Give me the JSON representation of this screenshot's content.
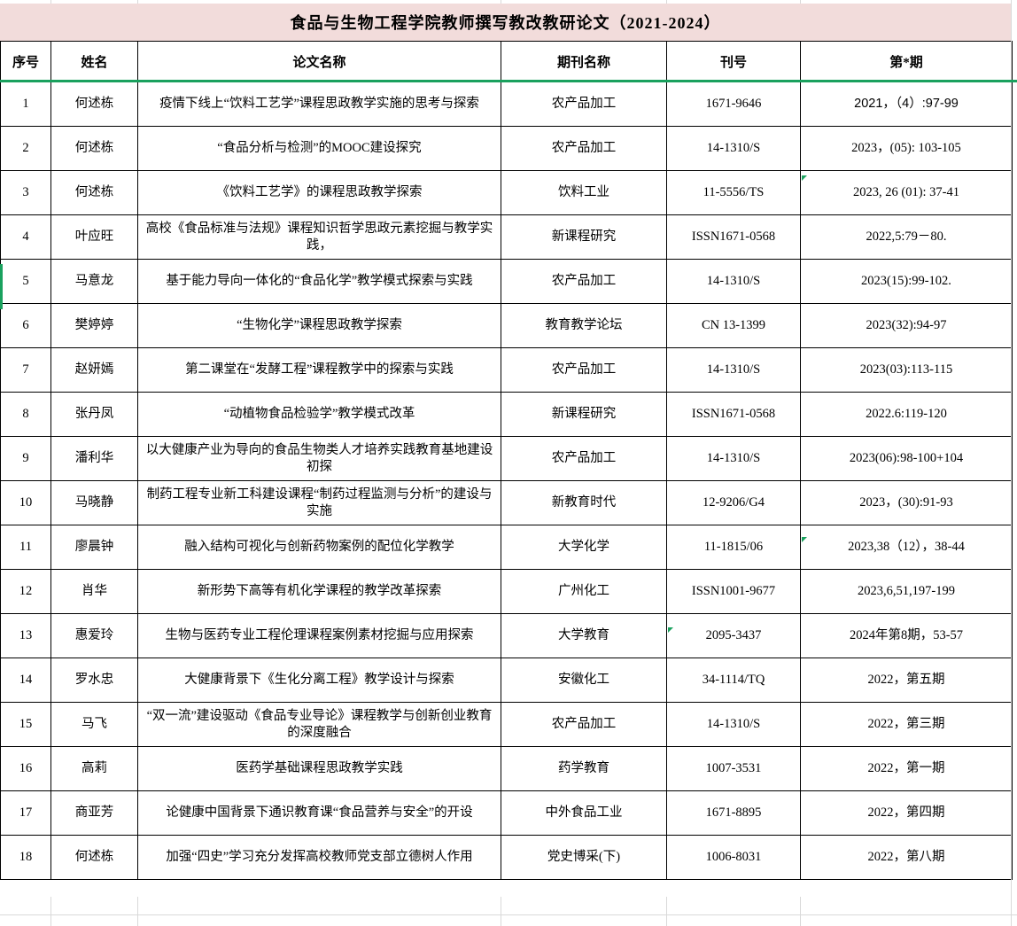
{
  "title": "食品与生物工程学院教师撰写教改教研论文（2021-2024）",
  "colors": {
    "title_bg": "#f2dcdb",
    "accent_green": "#1aa15e",
    "grid_light": "#d9d9d9",
    "border_black": "#000000"
  },
  "table": {
    "headers": [
      "序号",
      "姓名",
      "论文名称",
      "期刊名称",
      "刊号",
      "第*期"
    ],
    "rows": [
      {
        "no": "1",
        "name": "何述栋",
        "paper": "疫情下线上“饮料工艺学”课程思政教学实施的思考与探索",
        "journal": "农产品加工",
        "issn": "1671-9646",
        "issue": "2021，（4）:97-99"
      },
      {
        "no": "2",
        "name": "何述栋",
        "paper": "“食品分析与检测”的MOOC建设探究",
        "journal": "农产品加工",
        "issn": "14-1310/S",
        "issue": "2023，(05): 103-105"
      },
      {
        "no": "3",
        "name": "何述栋",
        "paper": "《饮料工艺学》的课程思政教学探索",
        "journal": "饮料工业",
        "issn": "11-5556/TS",
        "issue": "2023, 26 (01): 37-41"
      },
      {
        "no": "4",
        "name": "叶应旺",
        "paper": "高校《食品标准与法规》课程知识哲学思政元素挖掘与教学实践，",
        "journal": "新课程研究",
        "issn": "ISSN1671-0568",
        "issue": "2022,5:79－80."
      },
      {
        "no": "5",
        "name": "马意龙",
        "paper": "基于能力导向一体化的“食品化学”教学模式探索与实践",
        "journal": "农产品加工",
        "issn": "14-1310/S",
        "issue": "2023(15):99-102."
      },
      {
        "no": "6",
        "name": "樊婷婷",
        "paper": "“生物化学”课程思政教学探索",
        "journal": "教育教学论坛",
        "issn": "CN 13-1399",
        "issue": "2023(32):94-97"
      },
      {
        "no": "7",
        "name": "赵妍嫣",
        "paper": "第二课堂在“发酵工程”课程教学中的探索与实践",
        "journal": "农产品加工",
        "issn": "14-1310/S",
        "issue": "2023(03):113-115"
      },
      {
        "no": "8",
        "name": "张丹凤",
        "paper": "“动植物食品检验学”教学模式改革",
        "journal": "新课程研究",
        "issn": "ISSN1671-0568",
        "issue": "2022.6:119-120"
      },
      {
        "no": "9",
        "name": "潘利华",
        "paper": "以大健康产业为导向的食品生物类人才培养实践教育基地建设初探",
        "journal": "农产品加工",
        "issn": "14-1310/S",
        "issue": "2023(06):98-100+104"
      },
      {
        "no": "10",
        "name": "马晓静",
        "paper": "制药工程专业新工科建设课程“制药过程监测与分析”的建设与实施",
        "journal": "新教育时代",
        "issn": "12-9206/G4",
        "issue": "2023，(30):91-93"
      },
      {
        "no": "11",
        "name": "廖晨钟",
        "paper": "融入结构可视化与创新药物案例的配位化学教学",
        "journal": "大学化学",
        "issn": "11-1815/06",
        "issue": "2023,38（12），38-44"
      },
      {
        "no": "12",
        "name": "肖华",
        "paper": "新形势下高等有机化学课程的教学改革探索",
        "journal": "广州化工",
        "issn": "ISSN1001-9677",
        "issue": "2023,6,51,197-199"
      },
      {
        "no": "13",
        "name": "惠爱玲",
        "paper": "生物与医药专业工程伦理课程案例素材挖掘与应用探索",
        "journal": "大学教育",
        "issn": "2095-3437",
        "issue": "2024年第8期，53-57"
      },
      {
        "no": "14",
        "name": "罗水忠",
        "paper": "大健康背景下《生化分离工程》教学设计与探索",
        "journal": "安徽化工",
        "issn": "34-1114/TQ",
        "issue": "2022，第五期"
      },
      {
        "no": "15",
        "name": "马飞",
        "paper": "“双一流”建设驱动《食品专业导论》课程教学与创新创业教育的深度融合",
        "journal": "农产品加工",
        "issn": "14-1310/S",
        "issue": "2022，第三期"
      },
      {
        "no": "16",
        "name": "高莉",
        "paper": "医药学基础课程思政教学实践",
        "journal": "药学教育",
        "issn": "1007-3531",
        "issue": "2022，第一期"
      },
      {
        "no": "17",
        "name": "商亚芳",
        "paper": "论健康中国背景下通识教育课“食品营养与安全”的开设",
        "journal": "中外食品工业",
        "issn": "1671-8895",
        "issue": "2022，第四期"
      },
      {
        "no": "18",
        "name": "何述栋",
        "paper": "加强“四史”学习充分发挥高校教师党支部立德树人作用",
        "journal": "党史博采(下)",
        "issn": "1006-8031",
        "issue": "2022，第八期"
      }
    ]
  },
  "markers": {
    "comment_flags": [
      {
        "row": 3,
        "column": "issue"
      },
      {
        "row": 11,
        "column": "issue"
      },
      {
        "row": 13,
        "column": "issn"
      }
    ],
    "selected_cell": {
      "row": 5,
      "column": "no"
    }
  }
}
